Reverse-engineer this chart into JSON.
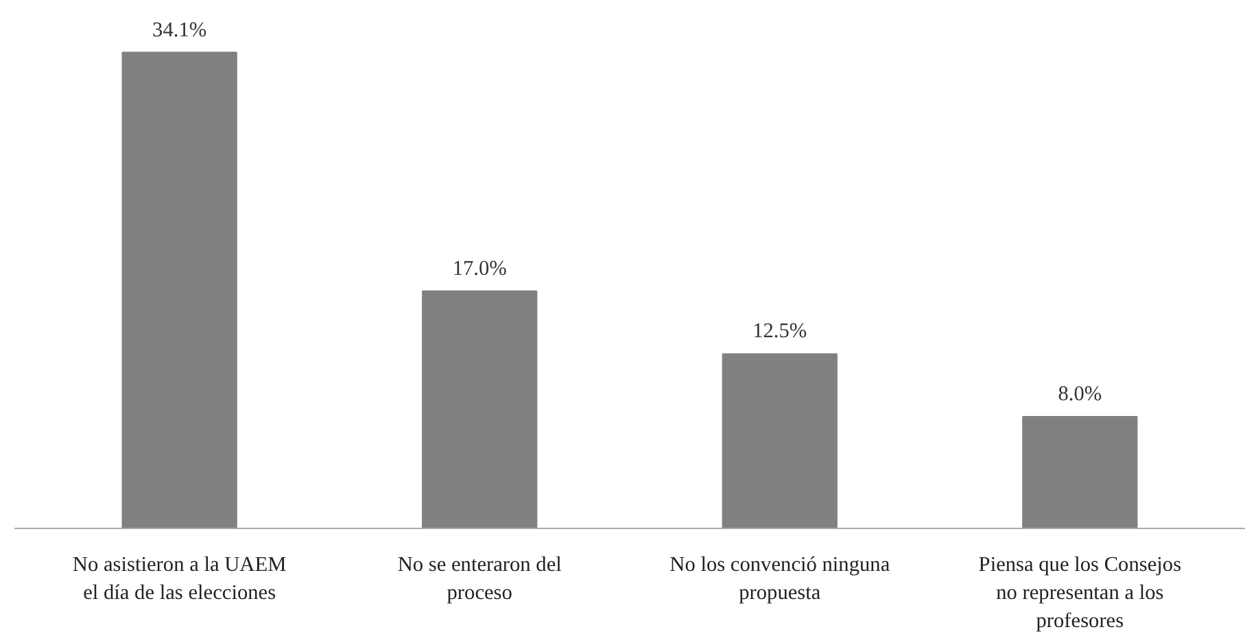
{
  "chart_data": {
    "type": "bar",
    "categories": [
      "No asistieron a la UAEM el día de las elecciones",
      "No se enteraron del proceso",
      "No los convenció ninguna propuesta",
      "Piensa que los Consejos no representan a los profesores"
    ],
    "values": [
      34.1,
      17.0,
      12.5,
      8.0
    ],
    "value_labels": [
      "34.1%",
      "17.0%",
      "12.5%",
      "8.0%"
    ],
    "color": "#808080",
    "grid": false
  }
}
